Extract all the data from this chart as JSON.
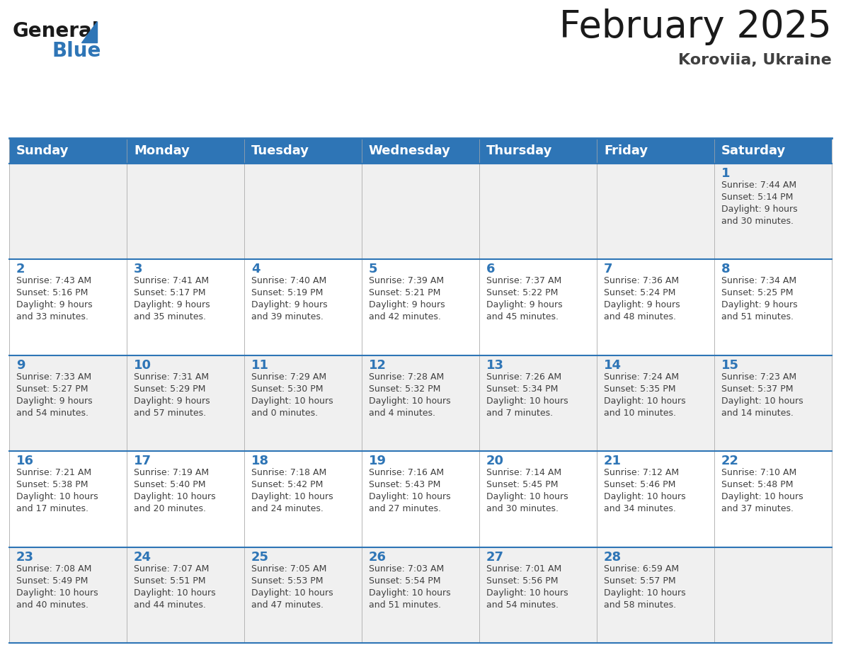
{
  "title": "February 2025",
  "subtitle": "Koroviia, Ukraine",
  "header_color": "#2e75b6",
  "header_text_color": "#ffffff",
  "cell_bg_color": "#ffffff",
  "alt_cell_bg_color": "#f0f0f0",
  "border_color": "#2e75b6",
  "day_number_color": "#2e75b6",
  "text_color": "#404040",
  "days_of_week": [
    "Sunday",
    "Monday",
    "Tuesday",
    "Wednesday",
    "Thursday",
    "Friday",
    "Saturday"
  ],
  "calendar_data": [
    [
      null,
      null,
      null,
      null,
      null,
      null,
      {
        "day": "1",
        "sunrise": "7:44 AM",
        "sunset": "5:14 PM",
        "daylight1": "Daylight: 9 hours",
        "daylight2": "and 30 minutes."
      }
    ],
    [
      {
        "day": "2",
        "sunrise": "7:43 AM",
        "sunset": "5:16 PM",
        "daylight1": "Daylight: 9 hours",
        "daylight2": "and 33 minutes."
      },
      {
        "day": "3",
        "sunrise": "7:41 AM",
        "sunset": "5:17 PM",
        "daylight1": "Daylight: 9 hours",
        "daylight2": "and 35 minutes."
      },
      {
        "day": "4",
        "sunrise": "7:40 AM",
        "sunset": "5:19 PM",
        "daylight1": "Daylight: 9 hours",
        "daylight2": "and 39 minutes."
      },
      {
        "day": "5",
        "sunrise": "7:39 AM",
        "sunset": "5:21 PM",
        "daylight1": "Daylight: 9 hours",
        "daylight2": "and 42 minutes."
      },
      {
        "day": "6",
        "sunrise": "7:37 AM",
        "sunset": "5:22 PM",
        "daylight1": "Daylight: 9 hours",
        "daylight2": "and 45 minutes."
      },
      {
        "day": "7",
        "sunrise": "7:36 AM",
        "sunset": "5:24 PM",
        "daylight1": "Daylight: 9 hours",
        "daylight2": "and 48 minutes."
      },
      {
        "day": "8",
        "sunrise": "7:34 AM",
        "sunset": "5:25 PM",
        "daylight1": "Daylight: 9 hours",
        "daylight2": "and 51 minutes."
      }
    ],
    [
      {
        "day": "9",
        "sunrise": "7:33 AM",
        "sunset": "5:27 PM",
        "daylight1": "Daylight: 9 hours",
        "daylight2": "and 54 minutes."
      },
      {
        "day": "10",
        "sunrise": "7:31 AM",
        "sunset": "5:29 PM",
        "daylight1": "Daylight: 9 hours",
        "daylight2": "and 57 minutes."
      },
      {
        "day": "11",
        "sunrise": "7:29 AM",
        "sunset": "5:30 PM",
        "daylight1": "Daylight: 10 hours",
        "daylight2": "and 0 minutes."
      },
      {
        "day": "12",
        "sunrise": "7:28 AM",
        "sunset": "5:32 PM",
        "daylight1": "Daylight: 10 hours",
        "daylight2": "and 4 minutes."
      },
      {
        "day": "13",
        "sunrise": "7:26 AM",
        "sunset": "5:34 PM",
        "daylight1": "Daylight: 10 hours",
        "daylight2": "and 7 minutes."
      },
      {
        "day": "14",
        "sunrise": "7:24 AM",
        "sunset": "5:35 PM",
        "daylight1": "Daylight: 10 hours",
        "daylight2": "and 10 minutes."
      },
      {
        "day": "15",
        "sunrise": "7:23 AM",
        "sunset": "5:37 PM",
        "daylight1": "Daylight: 10 hours",
        "daylight2": "and 14 minutes."
      }
    ],
    [
      {
        "day": "16",
        "sunrise": "7:21 AM",
        "sunset": "5:38 PM",
        "daylight1": "Daylight: 10 hours",
        "daylight2": "and 17 minutes."
      },
      {
        "day": "17",
        "sunrise": "7:19 AM",
        "sunset": "5:40 PM",
        "daylight1": "Daylight: 10 hours",
        "daylight2": "and 20 minutes."
      },
      {
        "day": "18",
        "sunrise": "7:18 AM",
        "sunset": "5:42 PM",
        "daylight1": "Daylight: 10 hours",
        "daylight2": "and 24 minutes."
      },
      {
        "day": "19",
        "sunrise": "7:16 AM",
        "sunset": "5:43 PM",
        "daylight1": "Daylight: 10 hours",
        "daylight2": "and 27 minutes."
      },
      {
        "day": "20",
        "sunrise": "7:14 AM",
        "sunset": "5:45 PM",
        "daylight1": "Daylight: 10 hours",
        "daylight2": "and 30 minutes."
      },
      {
        "day": "21",
        "sunrise": "7:12 AM",
        "sunset": "5:46 PM",
        "daylight1": "Daylight: 10 hours",
        "daylight2": "and 34 minutes."
      },
      {
        "day": "22",
        "sunrise": "7:10 AM",
        "sunset": "5:48 PM",
        "daylight1": "Daylight: 10 hours",
        "daylight2": "and 37 minutes."
      }
    ],
    [
      {
        "day": "23",
        "sunrise": "7:08 AM",
        "sunset": "5:49 PM",
        "daylight1": "Daylight: 10 hours",
        "daylight2": "and 40 minutes."
      },
      {
        "day": "24",
        "sunrise": "7:07 AM",
        "sunset": "5:51 PM",
        "daylight1": "Daylight: 10 hours",
        "daylight2": "and 44 minutes."
      },
      {
        "day": "25",
        "sunrise": "7:05 AM",
        "sunset": "5:53 PM",
        "daylight1": "Daylight: 10 hours",
        "daylight2": "and 47 minutes."
      },
      {
        "day": "26",
        "sunrise": "7:03 AM",
        "sunset": "5:54 PM",
        "daylight1": "Daylight: 10 hours",
        "daylight2": "and 51 minutes."
      },
      {
        "day": "27",
        "sunrise": "7:01 AM",
        "sunset": "5:56 PM",
        "daylight1": "Daylight: 10 hours",
        "daylight2": "and 54 minutes."
      },
      {
        "day": "28",
        "sunrise": "6:59 AM",
        "sunset": "5:57 PM",
        "daylight1": "Daylight: 10 hours",
        "daylight2": "and 58 minutes."
      },
      null
    ]
  ],
  "logo_text1": "General",
  "logo_text2": "Blue",
  "logo_color1": "#1a1a1a",
  "logo_color2": "#2e75b6",
  "triangle_color": "#2e75b6",
  "title_fontsize": 38,
  "subtitle_fontsize": 16,
  "header_fontsize": 13,
  "day_num_fontsize": 13,
  "cell_text_fontsize": 9
}
